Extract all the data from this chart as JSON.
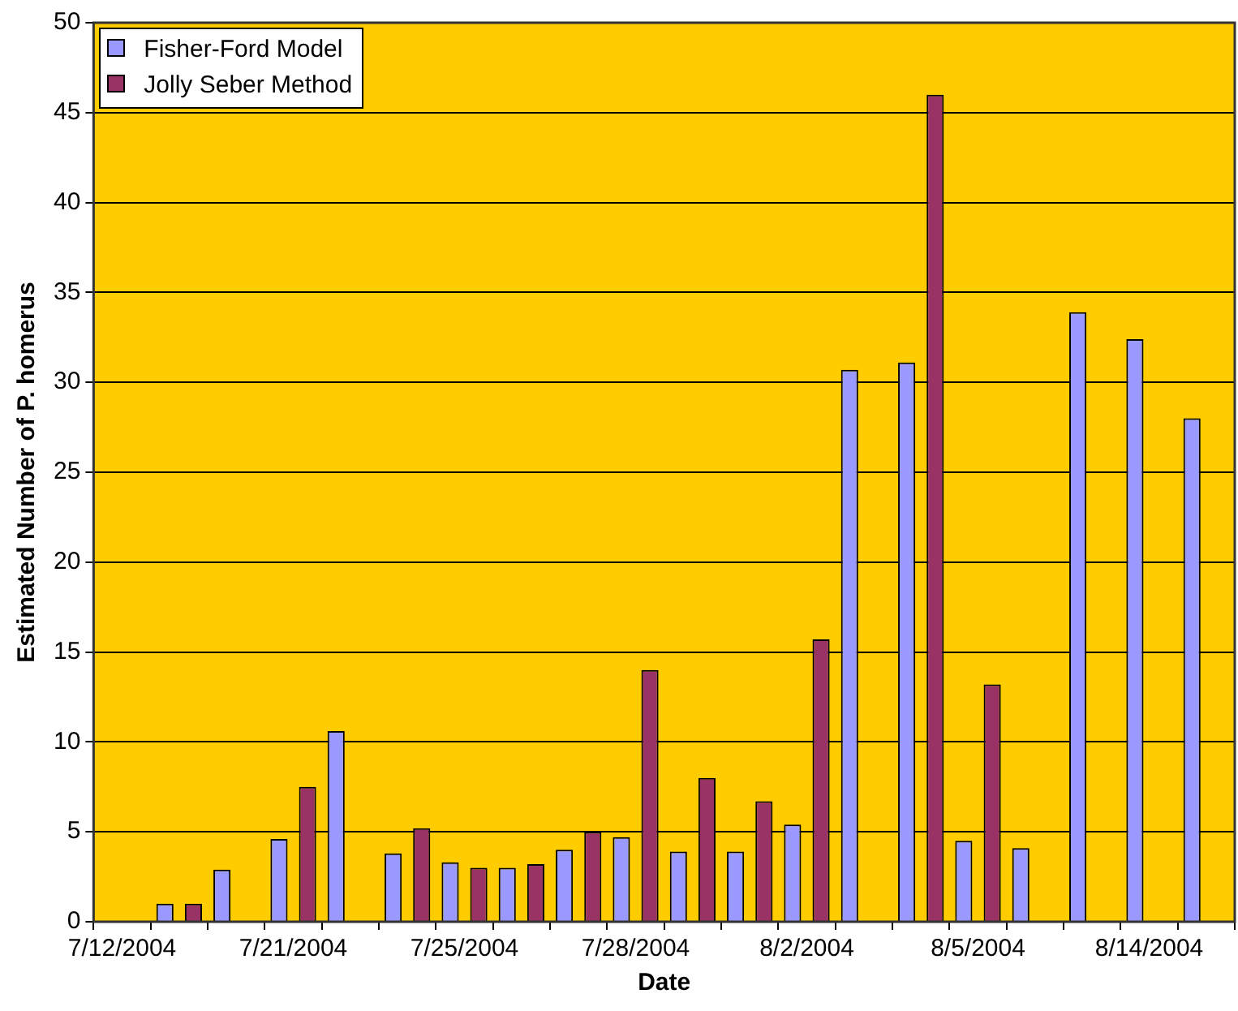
{
  "chart_data": {
    "type": "bar",
    "xlabel": "Date",
    "ylabel": "Estimated Number of P. homerus",
    "categories": [
      "7/12/2004",
      null,
      null,
      "7/21/2004",
      null,
      null,
      "7/25/2004",
      null,
      null,
      "7/28/2004",
      null,
      null,
      "8/2/2004",
      null,
      null,
      "8/5/2004",
      null,
      null,
      "8/14/2004",
      null
    ],
    "series": [
      {
        "name": "Fisher-Ford Model",
        "color": "#9999ff",
        "values": [
          null,
          1.0,
          2.9,
          4.6,
          10.6,
          3.8,
          3.3,
          3.0,
          4.0,
          4.7,
          3.9,
          3.9,
          5.4,
          30.7,
          31.1,
          4.5,
          4.1,
          33.9,
          32.4,
          28.0
        ]
      },
      {
        "name": "Jolly Seber Method",
        "color": "#993366",
        "values": [
          null,
          1.0,
          null,
          7.5,
          null,
          5.2,
          3.0,
          3.2,
          5.0,
          14.0,
          8.0,
          6.7,
          15.7,
          null,
          46.0,
          13.2,
          null,
          null,
          null,
          null
        ]
      }
    ],
    "ylim": [
      0,
      50
    ],
    "yticks": [
      0,
      5,
      10,
      15,
      20,
      25,
      30,
      35,
      40,
      45,
      50
    ],
    "grid": "y",
    "legend": "top left"
  }
}
